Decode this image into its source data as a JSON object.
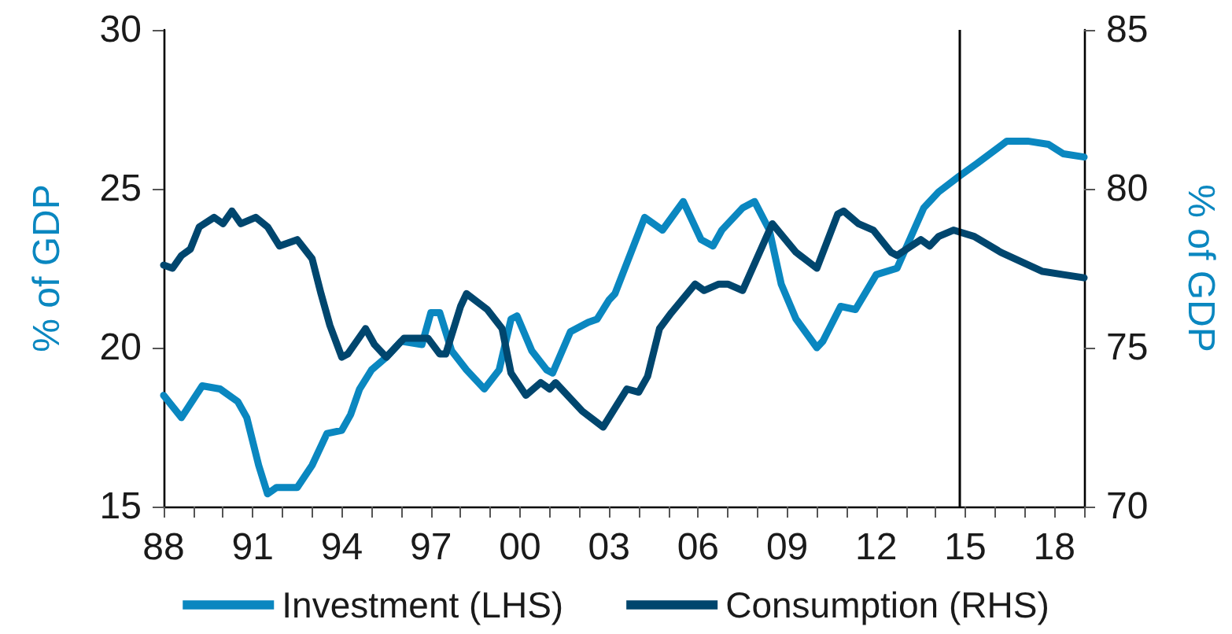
{
  "chart_data": {
    "type": "line",
    "ylabel": "% of GDP",
    "y2label": "% of GDP",
    "xlim": [
      1988,
      2019
    ],
    "ylim": [
      15,
      30
    ],
    "y2lim": [
      70,
      85
    ],
    "yticks": [
      15,
      20,
      25,
      30
    ],
    "y2ticks": [
      70,
      75,
      80,
      85
    ],
    "xticks": [
      {
        "value": 1988,
        "label": "88"
      },
      {
        "value": 1989,
        "label": null
      },
      {
        "value": 1990,
        "label": null
      },
      {
        "value": 1991,
        "label": "91"
      },
      {
        "value": 1992,
        "label": null
      },
      {
        "value": 1993,
        "label": null
      },
      {
        "value": 1994,
        "label": "94"
      },
      {
        "value": 1995,
        "label": null
      },
      {
        "value": 1996,
        "label": null
      },
      {
        "value": 1997,
        "label": "97"
      },
      {
        "value": 1998,
        "label": null
      },
      {
        "value": 1999,
        "label": null
      },
      {
        "value": 2000,
        "label": "00"
      },
      {
        "value": 2001,
        "label": null
      },
      {
        "value": 2002,
        "label": null
      },
      {
        "value": 2003,
        "label": "03"
      },
      {
        "value": 2004,
        "label": null
      },
      {
        "value": 2005,
        "label": null
      },
      {
        "value": 2006,
        "label": "06"
      },
      {
        "value": 2007,
        "label": null
      },
      {
        "value": 2008,
        "label": null
      },
      {
        "value": 2009,
        "label": "09"
      },
      {
        "value": 2010,
        "label": null
      },
      {
        "value": 2011,
        "label": null
      },
      {
        "value": 2012,
        "label": "12"
      },
      {
        "value": 2013,
        "label": null
      },
      {
        "value": 2014,
        "label": null
      },
      {
        "value": 2015,
        "label": "15"
      },
      {
        "value": 2016,
        "label": null
      },
      {
        "value": 2017,
        "label": null
      },
      {
        "value": 2018,
        "label": "18"
      },
      {
        "value": 2019,
        "label": null
      }
    ],
    "grid": false,
    "legend": "bottom",
    "marker": "none",
    "line_style": "solid",
    "ref_lines": [
      {
        "axis": "x",
        "value": 2014.8,
        "color": "#000000"
      }
    ],
    "series": [
      {
        "name": "Investment (LHS)",
        "color": "#0a87c0",
        "x": [
          1988.0,
          1988.6,
          1989.3,
          1989.9,
          1990.5,
          1990.8,
          1991.2,
          1991.5,
          1991.8,
          1992.5,
          1993.0,
          1993.5,
          1994.0,
          1994.3,
          1994.6,
          1995.0,
          1995.5,
          1996.0,
          1996.7,
          1997.0,
          1997.3,
          1997.7,
          1998.2,
          1998.8,
          1999.3,
          1999.7,
          1999.9,
          2000.4,
          2000.9,
          2001.1,
          2001.7,
          2002.3,
          2002.6,
          2003.0,
          2003.2,
          2004.2,
          2004.8,
          2005.5,
          2006.1,
          2006.5,
          2006.8,
          2007.5,
          2007.9,
          2008.4,
          2008.8,
          2009.3,
          2010.0,
          2010.2,
          2010.8,
          2011.3,
          2012.0,
          2012.7,
          2013.6,
          2014.1,
          2014.8,
          2015.4,
          2016.4,
          2017.1,
          2017.8,
          2018.3,
          2019.0
        ],
        "values": [
          18.5,
          17.8,
          18.8,
          18.7,
          18.3,
          17.8,
          16.3,
          15.4,
          15.6,
          15.6,
          16.3,
          17.3,
          17.4,
          17.9,
          18.7,
          19.3,
          19.7,
          20.2,
          20.1,
          21.1,
          21.1,
          19.9,
          19.3,
          18.7,
          19.3,
          20.9,
          21.0,
          19.9,
          19.3,
          19.2,
          20.5,
          20.8,
          20.9,
          21.5,
          21.7,
          24.1,
          23.7,
          24.6,
          23.4,
          23.2,
          23.7,
          24.4,
          24.6,
          23.7,
          22.0,
          20.9,
          20.0,
          20.2,
          21.3,
          21.2,
          22.3,
          22.5,
          24.4,
          24.9,
          25.4,
          25.8,
          26.5,
          26.5,
          26.4,
          26.1,
          26.0
        ]
      },
      {
        "name": "Consumption (RHS)",
        "color": "#00466e",
        "axis": "y2",
        "x": [
          1988.0,
          1988.3,
          1988.6,
          1988.9,
          1989.2,
          1989.7,
          1990.0,
          1990.3,
          1990.6,
          1991.1,
          1991.5,
          1991.9,
          1992.5,
          1993.0,
          1993.3,
          1993.6,
          1994.0,
          1994.2,
          1994.8,
          1995.1,
          1995.5,
          1996.1,
          1996.9,
          1997.3,
          1997.5,
          1998.0,
          1998.2,
          1998.9,
          1999.4,
          1999.7,
          2000.2,
          2000.7,
          2001.0,
          2001.2,
          2002.1,
          2002.8,
          2003.6,
          2004.0,
          2004.3,
          2004.7,
          2005.1,
          2005.9,
          2006.2,
          2006.7,
          2007.0,
          2007.5,
          2008.5,
          2009.3,
          2010.0,
          2010.7,
          2010.9,
          2011.4,
          2011.9,
          2012.5,
          2012.7,
          2013.5,
          2013.8,
          2014.1,
          2014.6,
          2015.3,
          2016.2,
          2017.6,
          2018.3,
          2019.0
        ],
        "values": [
          77.6,
          77.5,
          77.9,
          78.1,
          78.8,
          79.1,
          78.9,
          79.3,
          78.9,
          79.1,
          78.8,
          78.2,
          78.4,
          77.8,
          76.7,
          75.7,
          74.7,
          74.8,
          75.6,
          75.1,
          74.7,
          75.3,
          75.3,
          74.8,
          74.8,
          76.3,
          76.7,
          76.2,
          75.6,
          74.2,
          73.5,
          73.9,
          73.7,
          73.9,
          73.0,
          72.5,
          73.7,
          73.6,
          74.1,
          75.6,
          76.1,
          77.0,
          76.8,
          77.0,
          77.0,
          76.8,
          78.9,
          78.0,
          77.5,
          79.2,
          79.3,
          78.9,
          78.7,
          78.0,
          77.9,
          78.4,
          78.2,
          78.5,
          78.7,
          78.5,
          78.0,
          77.4,
          77.3,
          77.2
        ]
      }
    ]
  }
}
